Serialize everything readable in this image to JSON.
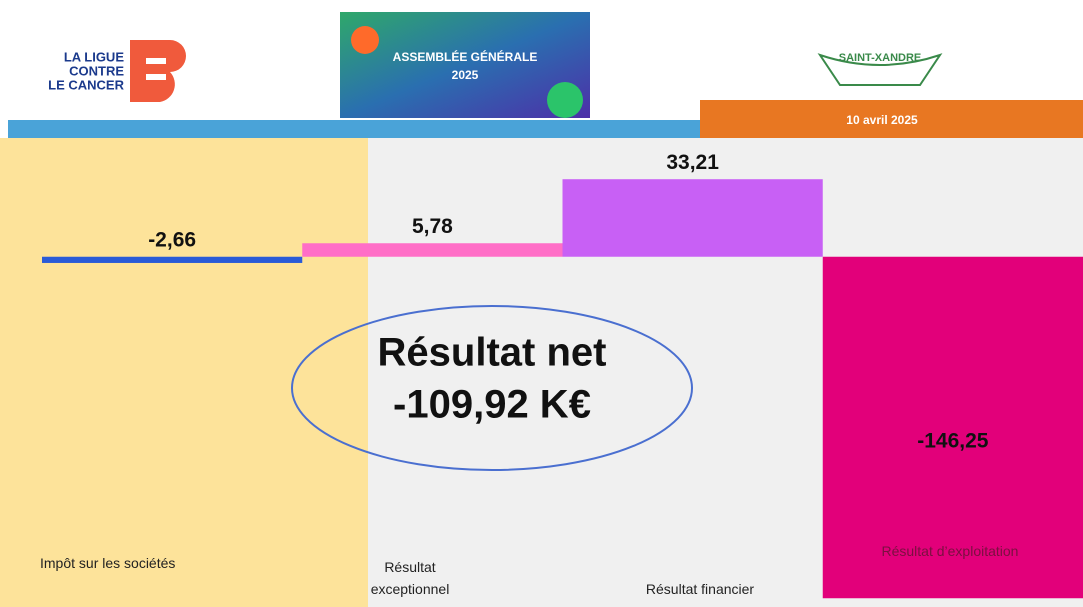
{
  "header": {
    "logo_left": [
      "LA LIGUE",
      "CONTRE",
      "LE CANCER"
    ],
    "banner": [
      "ASSEMBLÉE GÉNÉRALE",
      "2025"
    ],
    "logo_right": "SAINT-XANDRE",
    "date": "10 avril 2025"
  },
  "chart_data": {
    "type": "bar",
    "categories": [
      "Impôt sur les sociétés",
      "Résultat exceptionnel",
      "Résultat financier",
      "Résultat d’exploitation"
    ],
    "values": [
      -2.66,
      5.78,
      33.21,
      -146.25
    ],
    "value_labels": [
      "-2,66",
      "5,78",
      "33,21",
      "-146,25"
    ],
    "colors": [
      "#2a5bd7",
      "#ff6ec7",
      "#c860f5",
      "#e2007a"
    ],
    "ylim": [
      -150,
      50
    ],
    "annotations": [
      "Résultat net",
      "-109,92 K€"
    ]
  }
}
